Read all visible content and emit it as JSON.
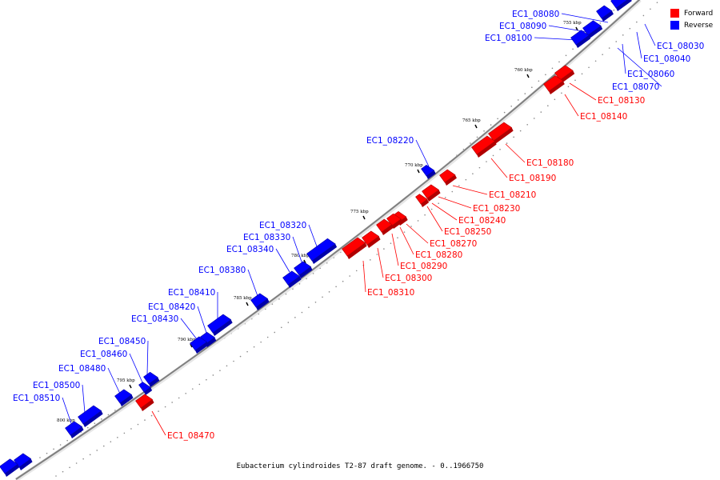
{
  "caption": "Eubacterium cylindroides T2-87 draft genome. - 0..1966750",
  "legend": [
    {
      "label": "Forward",
      "color": "#ff0000"
    },
    {
      "label": "Reverse",
      "color": "#0000ff"
    }
  ],
  "colors": {
    "forward": "#ff0000",
    "reverse": "#0000ff",
    "backbone": "#7f7f7f"
  },
  "ticks": [
    {
      "text": "755 kbp"
    },
    {
      "text": "760 kbp"
    },
    {
      "text": "765 kbp"
    },
    {
      "text": "770 kbp"
    },
    {
      "text": "775 kbp"
    },
    {
      "text": "780 kbp"
    },
    {
      "text": "785 kbp"
    },
    {
      "text": "790 kbp"
    },
    {
      "text": "795 kbp"
    },
    {
      "text": "800 kbp"
    }
  ],
  "genes": [
    {
      "name": "EC1_08030",
      "strand": "reverse"
    },
    {
      "name": "EC1_08040",
      "strand": "reverse"
    },
    {
      "name": "EC1_08060",
      "strand": "reverse"
    },
    {
      "name": "EC1_08070",
      "strand": "reverse"
    },
    {
      "name": "EC1_08080",
      "strand": "reverse"
    },
    {
      "name": "EC1_08090",
      "strand": "reverse"
    },
    {
      "name": "EC1_08100",
      "strand": "reverse"
    },
    {
      "name": "EC1_08130",
      "strand": "forward"
    },
    {
      "name": "EC1_08140",
      "strand": "forward"
    },
    {
      "name": "EC1_08180",
      "strand": "forward"
    },
    {
      "name": "EC1_08190",
      "strand": "forward"
    },
    {
      "name": "EC1_08210",
      "strand": "forward"
    },
    {
      "name": "EC1_08220",
      "strand": "reverse"
    },
    {
      "name": "EC1_08230",
      "strand": "forward"
    },
    {
      "name": "EC1_08240",
      "strand": "forward"
    },
    {
      "name": "EC1_08250",
      "strand": "forward"
    },
    {
      "name": "EC1_08270",
      "strand": "forward"
    },
    {
      "name": "EC1_08280",
      "strand": "forward"
    },
    {
      "name": "EC1_08290",
      "strand": "forward"
    },
    {
      "name": "EC1_08300",
      "strand": "forward"
    },
    {
      "name": "EC1_08310",
      "strand": "forward"
    },
    {
      "name": "EC1_08320",
      "strand": "reverse"
    },
    {
      "name": "EC1_08330",
      "strand": "reverse"
    },
    {
      "name": "EC1_08340",
      "strand": "reverse"
    },
    {
      "name": "EC1_08380",
      "strand": "reverse"
    },
    {
      "name": "EC1_08410",
      "strand": "reverse"
    },
    {
      "name": "EC1_08420",
      "strand": "reverse"
    },
    {
      "name": "EC1_08430",
      "strand": "reverse"
    },
    {
      "name": "EC1_08450",
      "strand": "reverse"
    },
    {
      "name": "EC1_08460",
      "strand": "reverse"
    },
    {
      "name": "EC1_08470",
      "strand": "forward"
    },
    {
      "name": "EC1_08480",
      "strand": "reverse"
    },
    {
      "name": "EC1_08500",
      "strand": "reverse"
    },
    {
      "name": "EC1_08510",
      "strand": "reverse"
    }
  ]
}
